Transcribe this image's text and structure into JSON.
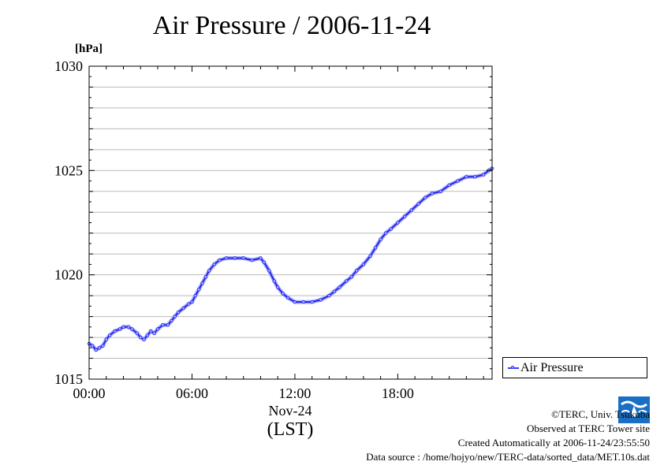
{
  "title": "Air Pressure / 2006-11-24",
  "unit_label": "[hPa]",
  "legend_label": "Air Pressure",
  "date_label": "Nov-24",
  "tz_label": "(LST)",
  "credits": {
    "line1": "©TERC, Univ. Tsukuba",
    "line2": "Observed at TERC Tower site",
    "line3": "Created Automatically at 2006-11-24/23:55:50",
    "line4": "Data source : /home/hojyo/new/TERC-data/sorted_data/MET.10s.dat"
  },
  "logo_text": "TERC",
  "colors": {
    "series": "#2222ee",
    "marker": "#aab0ff",
    "grid": "#bbbbbb"
  },
  "chart_data": {
    "type": "line",
    "title": "Air Pressure / 2006-11-24",
    "ylabel": "[hPa]",
    "xlabel": "(LST)",
    "xlim": [
      0,
      23.5
    ],
    "ylim": [
      1015,
      1030
    ],
    "x_ticks": [
      0,
      6,
      12,
      18
    ],
    "x_tick_labels": [
      "00:00",
      "06:00",
      "12:00",
      "18:00"
    ],
    "y_ticks": [
      1015,
      1020,
      1025,
      1030
    ],
    "y_tick_labels": [
      "1015",
      "1020",
      "1025",
      "1030"
    ],
    "grid": true,
    "legend": "outside-right-bottom",
    "series": [
      {
        "name": "Air Pressure",
        "points": [
          [
            0.0,
            1016.7
          ],
          [
            0.2,
            1016.6
          ],
          [
            0.4,
            1016.4
          ],
          [
            0.6,
            1016.5
          ],
          [
            0.8,
            1016.6
          ],
          [
            1.0,
            1016.9
          ],
          [
            1.2,
            1017.1
          ],
          [
            1.5,
            1017.3
          ],
          [
            1.8,
            1017.4
          ],
          [
            2.0,
            1017.5
          ],
          [
            2.3,
            1017.5
          ],
          [
            2.5,
            1017.4
          ],
          [
            2.8,
            1017.2
          ],
          [
            3.0,
            1017.0
          ],
          [
            3.2,
            1016.9
          ],
          [
            3.4,
            1017.1
          ],
          [
            3.6,
            1017.3
          ],
          [
            3.8,
            1017.2
          ],
          [
            4.0,
            1017.4
          ],
          [
            4.3,
            1017.6
          ],
          [
            4.6,
            1017.6
          ],
          [
            4.8,
            1017.8
          ],
          [
            5.0,
            1018.0
          ],
          [
            5.2,
            1018.2
          ],
          [
            5.5,
            1018.4
          ],
          [
            5.8,
            1018.6
          ],
          [
            6.0,
            1018.7
          ],
          [
            6.2,
            1019.0
          ],
          [
            6.4,
            1019.3
          ],
          [
            6.6,
            1019.6
          ],
          [
            6.8,
            1019.9
          ],
          [
            7.0,
            1020.2
          ],
          [
            7.3,
            1020.5
          ],
          [
            7.6,
            1020.7
          ],
          [
            8.0,
            1020.8
          ],
          [
            8.5,
            1020.8
          ],
          [
            9.0,
            1020.8
          ],
          [
            9.5,
            1020.7
          ],
          [
            10.0,
            1020.8
          ],
          [
            10.2,
            1020.6
          ],
          [
            10.5,
            1020.2
          ],
          [
            10.8,
            1019.7
          ],
          [
            11.0,
            1019.4
          ],
          [
            11.3,
            1019.1
          ],
          [
            11.6,
            1018.9
          ],
          [
            12.0,
            1018.7
          ],
          [
            12.5,
            1018.7
          ],
          [
            13.0,
            1018.7
          ],
          [
            13.5,
            1018.8
          ],
          [
            14.0,
            1019.0
          ],
          [
            14.3,
            1019.2
          ],
          [
            14.6,
            1019.4
          ],
          [
            15.0,
            1019.7
          ],
          [
            15.3,
            1019.9
          ],
          [
            15.6,
            1020.2
          ],
          [
            16.0,
            1020.5
          ],
          [
            16.4,
            1020.9
          ],
          [
            16.7,
            1021.3
          ],
          [
            17.0,
            1021.7
          ],
          [
            17.3,
            1022.0
          ],
          [
            17.6,
            1022.2
          ],
          [
            18.0,
            1022.5
          ],
          [
            18.4,
            1022.8
          ],
          [
            18.8,
            1023.1
          ],
          [
            19.2,
            1023.4
          ],
          [
            19.6,
            1023.7
          ],
          [
            20.0,
            1023.9
          ],
          [
            20.5,
            1024.0
          ],
          [
            21.0,
            1024.3
          ],
          [
            21.5,
            1024.5
          ],
          [
            22.0,
            1024.7
          ],
          [
            22.5,
            1024.7
          ],
          [
            23.0,
            1024.8
          ],
          [
            23.3,
            1025.0
          ],
          [
            23.5,
            1025.1
          ]
        ]
      }
    ]
  }
}
